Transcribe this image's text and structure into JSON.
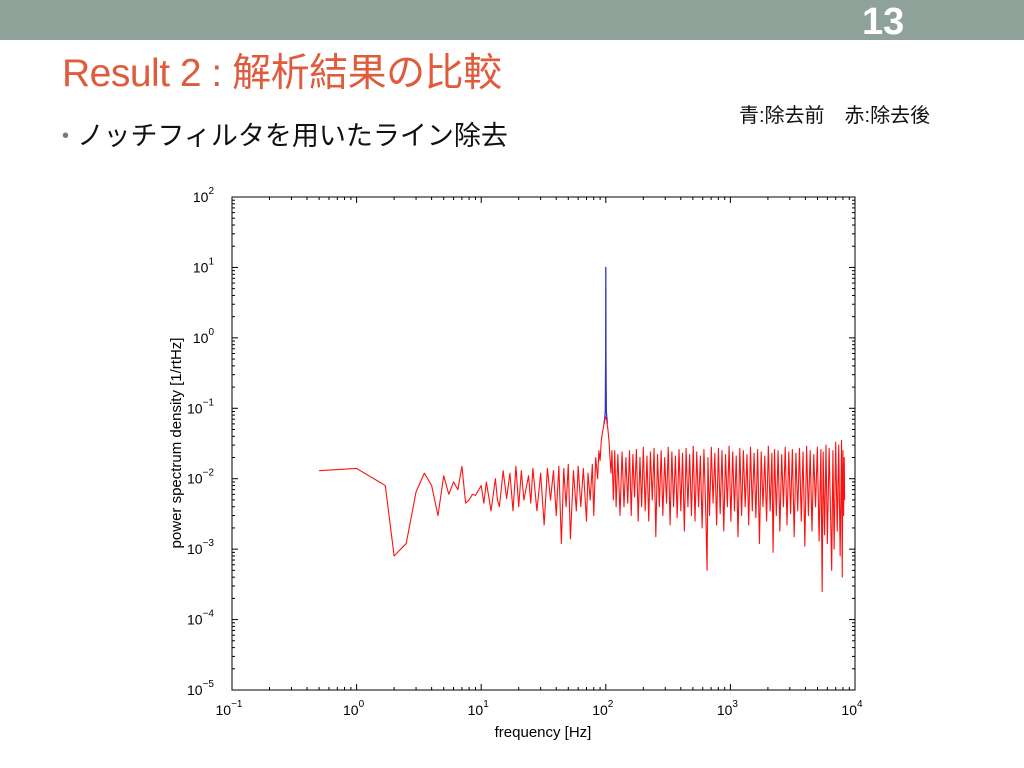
{
  "slide": {
    "number": "13",
    "title": "Result 2 : 解析結果の比較",
    "bullet_marker": "•",
    "bullet": "ノッチフィルタを用いたライン除去",
    "note": "青:除去前　赤:除去後"
  },
  "colors": {
    "top_bar": "#8fa29a",
    "title": "#e05b3c",
    "axis": "#000000"
  },
  "chart_data": {
    "type": "line",
    "xlabel": "frequency [Hz]",
    "ylabel": "power spectrum density [1/rtHz]",
    "xscale": "log",
    "yscale": "log",
    "xlim": [
      0.1,
      10000
    ],
    "ylim": [
      1e-05,
      100
    ],
    "grid": false,
    "xticks": [
      {
        "value": 0.1,
        "base": "10",
        "exp": "−1"
      },
      {
        "value": 1,
        "base": "10",
        "exp": "0"
      },
      {
        "value": 10,
        "base": "10",
        "exp": "1"
      },
      {
        "value": 100,
        "base": "10",
        "exp": "2"
      },
      {
        "value": 1000,
        "base": "10",
        "exp": "3"
      },
      {
        "value": 10000,
        "base": "10",
        "exp": "4"
      }
    ],
    "yticks": [
      {
        "value": 100,
        "base": "10",
        "exp": "2"
      },
      {
        "value": 10,
        "base": "10",
        "exp": "1"
      },
      {
        "value": 1,
        "base": "10",
        "exp": "0"
      },
      {
        "value": 0.1,
        "base": "10",
        "exp": "−1"
      },
      {
        "value": 0.01,
        "base": "10",
        "exp": "−2"
      },
      {
        "value": 0.001,
        "base": "10",
        "exp": "−3"
      },
      {
        "value": 0.0001,
        "base": "10",
        "exp": "−4"
      },
      {
        "value": 1e-05,
        "base": "10",
        "exp": "−5"
      }
    ],
    "series": [
      {
        "color": "#3535c8",
        "points": [
          [
            97,
            0.06
          ],
          [
            99,
            0.09
          ],
          [
            99.7,
            0.5
          ],
          [
            100,
            10
          ],
          [
            100.3,
            0.5
          ],
          [
            101,
            0.09
          ],
          [
            103,
            0.06
          ]
        ]
      },
      {
        "color": "#ff1010",
        "points": [
          [
            0.5,
            0.013
          ],
          [
            1.0,
            0.014
          ],
          [
            1.7,
            0.008
          ],
          [
            2.0,
            0.0008
          ],
          [
            2.5,
            0.0012
          ],
          [
            3.0,
            0.0065
          ],
          [
            3.5,
            0.012
          ],
          [
            4.0,
            0.008
          ],
          [
            4.5,
            0.003
          ],
          [
            5.0,
            0.011
          ],
          [
            5.5,
            0.006
          ],
          [
            6.0,
            0.009
          ],
          [
            6.5,
            0.007
          ],
          [
            7.0,
            0.015
          ],
          [
            7.5,
            0.0045
          ],
          [
            8,
            0.005
          ],
          [
            8.5,
            0.006
          ],
          [
            9,
            0.0058
          ],
          [
            10,
            0.008
          ],
          [
            10.5,
            0.0045
          ],
          [
            11,
            0.009
          ],
          [
            12,
            0.0035
          ],
          [
            13,
            0.01
          ],
          [
            13.5,
            0.005
          ],
          [
            14,
            0.004
          ],
          [
            15,
            0.013
          ],
          [
            16,
            0.0052
          ],
          [
            17,
            0.012
          ],
          [
            18,
            0.0035
          ],
          [
            19,
            0.015
          ],
          [
            20,
            0.004
          ],
          [
            21,
            0.013
          ],
          [
            22,
            0.005
          ],
          [
            24,
            0.011
          ],
          [
            25,
            0.0045
          ],
          [
            26,
            0.014
          ],
          [
            28,
            0.0035
          ],
          [
            30,
            0.012
          ],
          [
            32,
            0.0022
          ],
          [
            34,
            0.014
          ],
          [
            36,
            0.005
          ],
          [
            38,
            0.013
          ],
          [
            40,
            0.003
          ],
          [
            42,
            0.015
          ],
          [
            44,
            0.0012
          ],
          [
            46,
            0.014
          ],
          [
            48,
            0.004
          ],
          [
            50,
            0.016
          ],
          [
            52,
            0.0014
          ],
          [
            55,
            0.013
          ],
          [
            58,
            0.0035
          ],
          [
            60,
            0.015
          ],
          [
            63,
            0.004
          ],
          [
            66,
            0.014
          ],
          [
            70,
            0.0025
          ],
          [
            72,
            0.012
          ],
          [
            75,
            0.005
          ],
          [
            78,
            0.016
          ],
          [
            80,
            0.003
          ],
          [
            83,
            0.02
          ],
          [
            86,
            0.01
          ],
          [
            88,
            0.025
          ],
          [
            90,
            0.018
          ],
          [
            92,
            0.035
          ],
          [
            94,
            0.045
          ],
          [
            96,
            0.055
          ],
          [
            98,
            0.07
          ],
          [
            100,
            0.075
          ],
          [
            102,
            0.065
          ],
          [
            104,
            0.05
          ],
          [
            106,
            0.035
          ],
          [
            108,
            0.02
          ],
          [
            110,
            0.012
          ],
          [
            112,
            0.025
          ],
          [
            115,
            0.005
          ],
          [
            118,
            0.025
          ],
          [
            121,
            0.004
          ],
          [
            125,
            0.022
          ],
          [
            130,
            0.003
          ],
          [
            135,
            0.024
          ],
          [
            140,
            0.004
          ],
          [
            145,
            0.02
          ],
          [
            150,
            0.0045
          ],
          [
            155,
            0.025
          ],
          [
            160,
            0.003
          ],
          [
            165,
            0.022
          ],
          [
            170,
            0.0055
          ],
          [
            176,
            0.026
          ],
          [
            182,
            0.0025
          ],
          [
            188,
            0.02
          ],
          [
            194,
            0.004
          ],
          [
            200,
            0.028
          ],
          [
            207,
            0.0035
          ],
          [
            214,
            0.021
          ],
          [
            221,
            0.0025
          ],
          [
            228,
            0.024
          ],
          [
            236,
            0.005
          ],
          [
            244,
            0.027
          ],
          [
            252,
            0.0015
          ],
          [
            260,
            0.022
          ],
          [
            269,
            0.004
          ],
          [
            278,
            0.025
          ],
          [
            287,
            0.003
          ],
          [
            297,
            0.02
          ],
          [
            307,
            0.0045
          ],
          [
            317,
            0.028
          ],
          [
            328,
            0.0022
          ],
          [
            339,
            0.024
          ],
          [
            350,
            0.004
          ],
          [
            362,
            0.021
          ],
          [
            374,
            0.0028
          ],
          [
            387,
            0.026
          ],
          [
            400,
            0.0035
          ],
          [
            413,
            0.023
          ],
          [
            427,
            0.0018
          ],
          [
            441,
            0.027
          ],
          [
            456,
            0.004
          ],
          [
            471,
            0.022
          ],
          [
            487,
            0.003
          ],
          [
            503,
            0.029
          ],
          [
            520,
            0.0025
          ],
          [
            537,
            0.024
          ],
          [
            555,
            0.004
          ],
          [
            574,
            0.021
          ],
          [
            593,
            0.002
          ],
          [
            613,
            0.026
          ],
          [
            634,
            0.0035
          ],
          [
            650,
            0.0005
          ],
          [
            660,
            0.02
          ],
          [
            680,
            0.003
          ],
          [
            703,
            0.028
          ],
          [
            726,
            0.0045
          ],
          [
            750,
            0.023
          ],
          [
            775,
            0.0022
          ],
          [
            801,
            0.027
          ],
          [
            828,
            0.0032
          ],
          [
            856,
            0.025
          ],
          [
            885,
            0.0018
          ],
          [
            914,
            0.022
          ],
          [
            945,
            0.004
          ],
          [
            976,
            0.029
          ],
          [
            1009,
            0.0025
          ],
          [
            1043,
            0.024
          ],
          [
            1078,
            0.0035
          ],
          [
            1114,
            0.021
          ],
          [
            1151,
            0.0015
          ],
          [
            1190,
            0.027
          ],
          [
            1230,
            0.003
          ],
          [
            1271,
            0.025
          ],
          [
            1314,
            0.004
          ],
          [
            1358,
            0.022
          ],
          [
            1403,
            0.0022
          ],
          [
            1450,
            0.028
          ],
          [
            1499,
            0.0035
          ],
          [
            1549,
            0.023
          ],
          [
            1601,
            0.0028
          ],
          [
            1655,
            0.026
          ],
          [
            1710,
            0.0012
          ],
          [
            1767,
            0.024
          ],
          [
            1826,
            0.004
          ],
          [
            1888,
            0.021
          ],
          [
            1951,
            0.0025
          ],
          [
            2016,
            0.029
          ],
          [
            2084,
            0.0035
          ],
          [
            2154,
            0.023
          ],
          [
            2200,
            0.0009
          ],
          [
            2260,
            0.026
          ],
          [
            2336,
            0.003
          ],
          [
            2414,
            0.025
          ],
          [
            2495,
            0.0018
          ],
          [
            2579,
            0.022
          ],
          [
            2665,
            0.004
          ],
          [
            2754,
            0.028
          ],
          [
            2847,
            0.0022
          ],
          [
            2942,
            0.024
          ],
          [
            3041,
            0.0032
          ],
          [
            3143,
            0.026
          ],
          [
            3248,
            0.0015
          ],
          [
            3357,
            0.023
          ],
          [
            3469,
            0.0035
          ],
          [
            3585,
            0.027
          ],
          [
            3705,
            0.0025
          ],
          [
            3829,
            0.024
          ],
          [
            3958,
            0.0011
          ],
          [
            4090,
            0.029
          ],
          [
            4227,
            0.003
          ],
          [
            4369,
            0.025
          ],
          [
            4515,
            0.0018
          ],
          [
            4666,
            0.022
          ],
          [
            4823,
            0.004
          ],
          [
            4984,
            0.028
          ],
          [
            5151,
            0.0013
          ],
          [
            5324,
            0.026
          ],
          [
            5450,
            0.00025
          ],
          [
            5550,
            0.024
          ],
          [
            5700,
            0.0016
          ],
          [
            5850,
            0.03
          ],
          [
            6000,
            0.0012
          ],
          [
            6200,
            0.027
          ],
          [
            6400,
            0.002
          ],
          [
            6500,
            0.0005
          ],
          [
            6650,
            0.025
          ],
          [
            6800,
            0.001
          ],
          [
            7000,
            0.033
          ],
          [
            7200,
            0.0018
          ],
          [
            7400,
            0.03
          ],
          [
            7600,
            0.0008
          ],
          [
            7800,
            0.035
          ],
          [
            7900,
            0.0004
          ],
          [
            8000,
            0.025
          ],
          [
            8100,
            0.003
          ],
          [
            8200,
            0.02
          ],
          [
            8250,
            0.005
          ]
        ]
      }
    ]
  }
}
